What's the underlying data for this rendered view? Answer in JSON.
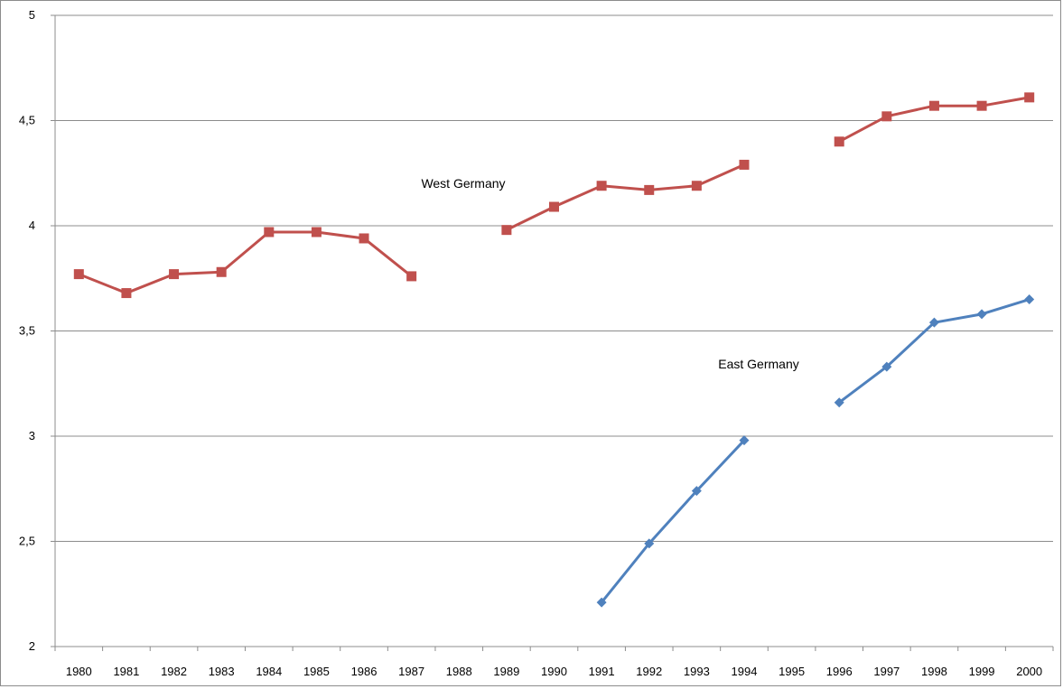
{
  "chart_data": {
    "type": "line",
    "title": "",
    "xlabel": "",
    "ylabel": "",
    "categories": [
      "1980",
      "1981",
      "1982",
      "1983",
      "1984",
      "1985",
      "1986",
      "1987",
      "1988",
      "1989",
      "1990",
      "1991",
      "1992",
      "1993",
      "1994",
      "1995",
      "1996",
      "1997",
      "1998",
      "1999",
      "2000"
    ],
    "y_tick_labels": [
      "2",
      "2,5",
      "3",
      "3,5",
      "4",
      "4,5",
      "5"
    ],
    "ylim": [
      2,
      5
    ],
    "grid": "horizontal",
    "legend": "none",
    "series": [
      {
        "name": "West Germany",
        "color": "#C0504D",
        "marker": "square",
        "values": [
          3.77,
          3.68,
          3.77,
          3.78,
          3.97,
          3.97,
          3.94,
          3.76,
          null,
          3.98,
          4.09,
          4.19,
          4.17,
          4.19,
          4.29,
          null,
          4.4,
          4.52,
          4.57,
          4.57,
          4.61
        ]
      },
      {
        "name": "East Germany",
        "color": "#4F81BD",
        "marker": "diamond",
        "values": [
          null,
          null,
          null,
          null,
          null,
          null,
          null,
          null,
          null,
          null,
          null,
          2.21,
          2.49,
          2.74,
          2.98,
          null,
          3.16,
          3.33,
          3.54,
          3.58,
          3.65
        ]
      }
    ],
    "annotations": [
      "West Germany",
      "East Germany"
    ]
  }
}
